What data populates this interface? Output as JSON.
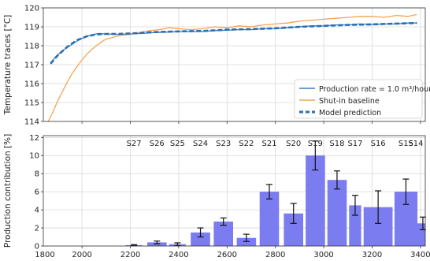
{
  "chart_data": [
    {
      "type": "line",
      "ylabel": "Temperature traces [°C]",
      "xlim": [
        1840,
        3420
      ],
      "ylim": [
        114,
        120
      ],
      "xticks": [
        2000,
        2200,
        2400,
        2600,
        2800,
        3000,
        3200,
        3400
      ],
      "yticks": [
        114,
        115,
        116,
        117,
        118,
        119,
        120
      ],
      "grid": true,
      "legend_position": "lower right",
      "series": [
        {
          "name": "Production rate = 1.0 m³/hour",
          "color": "#3a7fc4",
          "style": "solid",
          "x": [
            1870,
            1890,
            1920,
            1950,
            1980,
            2010,
            2040,
            2070,
            2100,
            2150,
            2200,
            2250,
            2300,
            2350,
            2400,
            2450,
            2500,
            2550,
            2600,
            2650,
            2700,
            2750,
            2800,
            2850,
            2900,
            2950,
            3000,
            3050,
            3100,
            3150,
            3200,
            3250,
            3300,
            3350,
            3385
          ],
          "y": [
            117.1,
            117.4,
            117.75,
            118.0,
            118.25,
            118.45,
            118.58,
            118.65,
            118.62,
            118.6,
            118.62,
            118.65,
            118.7,
            118.72,
            118.75,
            118.75,
            118.75,
            118.8,
            118.82,
            118.85,
            118.85,
            118.9,
            118.9,
            118.95,
            119.0,
            119.05,
            119.05,
            119.1,
            119.1,
            119.15,
            119.12,
            119.15,
            119.15,
            119.2,
            119.2
          ]
        },
        {
          "name": "Shut-in baseline",
          "color": "#f5a356",
          "style": "solid",
          "x": [
            1860,
            1880,
            1900,
            1920,
            1940,
            1960,
            1980,
            2000,
            2020,
            2040,
            2060,
            2080,
            2100,
            2130,
            2160,
            2200,
            2240,
            2280,
            2320,
            2360,
            2400,
            2450,
            2500,
            2550,
            2600,
            2650,
            2700,
            2750,
            2800,
            2850,
            2900,
            2950,
            3000,
            3050,
            3100,
            3150,
            3200,
            3250,
            3300,
            3350,
            3385
          ],
          "y": [
            114.0,
            114.5,
            115.1,
            115.6,
            116.1,
            116.55,
            116.9,
            117.25,
            117.55,
            117.8,
            118.0,
            118.2,
            118.35,
            118.45,
            118.55,
            118.6,
            118.7,
            118.8,
            118.85,
            118.95,
            118.9,
            118.85,
            118.9,
            119.0,
            118.95,
            119.05,
            119.0,
            119.1,
            119.15,
            119.2,
            119.3,
            119.35,
            119.4,
            119.45,
            119.5,
            119.55,
            119.55,
            119.5,
            119.6,
            119.55,
            119.65
          ]
        },
        {
          "name": "Model prediction",
          "color": "#2a6fb5",
          "style": "dashed",
          "x": [
            1870,
            1900,
            1940,
            1980,
            2020,
            2060,
            2100,
            2150,
            2200,
            2300,
            2400,
            2500,
            2600,
            2700,
            2800,
            2900,
            3000,
            3100,
            3200,
            3300,
            3385
          ],
          "y": [
            117.05,
            117.5,
            117.95,
            118.3,
            118.5,
            118.6,
            118.62,
            118.62,
            118.65,
            118.72,
            118.76,
            118.78,
            118.85,
            118.88,
            118.92,
            119.0,
            119.05,
            119.1,
            119.13,
            119.17,
            119.2
          ]
        }
      ]
    },
    {
      "type": "bar",
      "ylabel": "Production contribution [%]",
      "xlim": [
        1840,
        3420
      ],
      "ylim": [
        0,
        12.2
      ],
      "xticks": [
        1800,
        2000,
        2200,
        2400,
        2600,
        2800,
        3000,
        3200,
        3400
      ],
      "yticks": [
        0,
        2,
        4,
        6,
        8,
        10,
        12
      ],
      "grid": true,
      "bar_color": "#7b7cf0",
      "bars": [
        {
          "label": "S27",
          "x": 2215,
          "width": 70,
          "value": 0.1,
          "error": 0.05
        },
        {
          "label": "S26",
          "x": 2310,
          "width": 80,
          "value": 0.4,
          "error": 0.15
        },
        {
          "label": "S25",
          "x": 2395,
          "width": 70,
          "value": 0.2,
          "error": 0.15
        },
        {
          "label": "S24",
          "x": 2490,
          "width": 80,
          "value": 1.5,
          "error": 0.5
        },
        {
          "label": "S23",
          "x": 2585,
          "width": 80,
          "value": 2.7,
          "error": 0.4
        },
        {
          "label": "S22",
          "x": 2680,
          "width": 80,
          "value": 0.9,
          "error": 0.4
        },
        {
          "label": "S21",
          "x": 2775,
          "width": 80,
          "value": 6.0,
          "error": 0.8
        },
        {
          "label": "S20",
          "x": 2875,
          "width": 80,
          "value": 3.6,
          "error": 1.1
        },
        {
          "label": "S19",
          "x": 2965,
          "width": 80,
          "value": 10.0,
          "error": 1.6
        },
        {
          "label": "S18",
          "x": 3055,
          "width": 80,
          "value": 7.3,
          "error": 1.0
        },
        {
          "label": "S17",
          "x": 3130,
          "width": 50,
          "value": 4.5,
          "error": 1.1
        },
        {
          "label": "S16",
          "x": 3225,
          "width": 120,
          "value": 4.3,
          "error": 1.8
        },
        {
          "label": "S15",
          "x": 3340,
          "width": 95,
          "value": 6.0,
          "error": 1.4
        },
        {
          "label": "S14",
          "x": 3410,
          "width": 45,
          "value": 2.5,
          "error": 0.7
        }
      ]
    }
  ]
}
